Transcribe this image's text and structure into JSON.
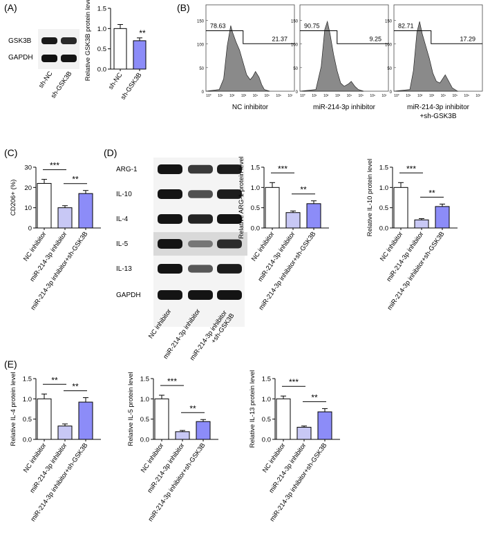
{
  "panel_labels": {
    "A": "(A)",
    "B": "(B)",
    "C": "(C)",
    "D": "(D)",
    "E": "(E)"
  },
  "colors": {
    "white": "#ffffff",
    "light": "#c8c8f5",
    "blue": "#8c8cf8",
    "band": "#1a1a1a",
    "hist": "#8a8a8a"
  },
  "blot_A": {
    "bands": [
      "GSK3B",
      "GAPDH"
    ],
    "lanes": [
      "sh-NC",
      "sh-GSK3B"
    ]
  },
  "blot_D": {
    "bands": [
      "ARG-1",
      "IL-10",
      "IL-4",
      "IL-5",
      "IL-13",
      "GAPDH"
    ],
    "lanes": [
      "NC inhibitor",
      "miR-214-3p inhibitor",
      "miR-214-3p inhibitor\n+sh-GSK3B"
    ]
  },
  "flow": [
    {
      "label": "NC inhibitor",
      "left_pct": "78.63",
      "right_pct": "21.37"
    },
    {
      "label": "miR-214-3p inhibitor",
      "left_pct": "90.75",
      "right_pct": "9.25"
    },
    {
      "label": "miR-214-3p inhibitor\n+sh-GSK3B",
      "left_pct": "82.71",
      "right_pct": "17.29"
    }
  ],
  "flow_yticks": [
    "0",
    "50",
    "100",
    "150"
  ],
  "flow_xticks": [
    "10°",
    "10¹",
    "10²",
    "10³",
    "10⁴",
    "10⁵",
    "10⁶",
    "10⁷"
  ],
  "chart_data": [
    {
      "id": "A",
      "type": "bar",
      "categories": [
        "sh-NC",
        "sh-GSK3B"
      ],
      "values": [
        1.0,
        0.7
      ],
      "errors": [
        0.1,
        0.07
      ],
      "ylabel": "Relative GSK3B protein level",
      "ylim": [
        0,
        1.5
      ],
      "yticks": [
        "0.0",
        "0.5",
        "1.0",
        "1.5"
      ],
      "sig": [
        {
          "text": "**",
          "over": 1
        }
      ]
    },
    {
      "id": "C",
      "type": "bar",
      "categories": [
        "NC inhibitor",
        "miR-214-3p inhibitor",
        "miR-214-3p inhibitor+sh-GSK3B"
      ],
      "values": [
        22,
        10,
        17
      ],
      "errors": [
        2,
        1,
        1.5
      ],
      "ylabel": "CD206+ (%)",
      "ylim": [
        0,
        30
      ],
      "yticks": [
        "0",
        "10",
        "20",
        "30"
      ],
      "sig": [
        {
          "text": "***",
          "from": 0,
          "to": 1
        },
        {
          "text": "**",
          "from": 1,
          "to": 2
        }
      ]
    },
    {
      "id": "ARG1",
      "type": "bar",
      "categories": [
        "NC inhibitor",
        "miR-214-3p inhibitor",
        "miR-214-3p inhibitor+sh-GSK3B"
      ],
      "values": [
        1.0,
        0.38,
        0.6
      ],
      "errors": [
        0.12,
        0.04,
        0.07
      ],
      "ylabel": "Relative ARG-1 protein level",
      "ylim": [
        0,
        1.5
      ],
      "yticks": [
        "0.0",
        "0.5",
        "1.0",
        "1.5"
      ],
      "sig": [
        {
          "text": "***",
          "from": 0,
          "to": 1
        },
        {
          "text": "**",
          "from": 1,
          "to": 2
        }
      ]
    },
    {
      "id": "IL10",
      "type": "bar",
      "categories": [
        "NC inhibitor",
        "miR-214-3p inhibitor",
        "miR-214-3p inhibitor+sh-GSK3B"
      ],
      "values": [
        1.0,
        0.2,
        0.53
      ],
      "errors": [
        0.12,
        0.03,
        0.06
      ],
      "ylabel": "Relative IL-10 protein level",
      "ylim": [
        0,
        1.5
      ],
      "yticks": [
        "0.0",
        "0.5",
        "1.0",
        "1.5"
      ],
      "sig": [
        {
          "text": "***",
          "from": 0,
          "to": 1
        },
        {
          "text": "**",
          "from": 1,
          "to": 2
        }
      ]
    },
    {
      "id": "IL4",
      "type": "bar",
      "categories": [
        "NC inhibitor",
        "miR-214-3p inhibitor",
        "miR-214-3p inhibitor+sh-GSK3B"
      ],
      "values": [
        1.0,
        0.33,
        0.92
      ],
      "errors": [
        0.12,
        0.05,
        0.11
      ],
      "ylabel": "Relative IL-4 protein level",
      "ylim": [
        0,
        1.5
      ],
      "yticks": [
        "0.0",
        "0.5",
        "1.0",
        "1.5"
      ],
      "sig": [
        {
          "text": "**",
          "from": 0,
          "to": 1
        },
        {
          "text": "**",
          "from": 1,
          "to": 2
        }
      ]
    },
    {
      "id": "IL5",
      "type": "bar",
      "categories": [
        "NC inhibitor",
        "miR-214-3p inhibitor",
        "miR-214-3p inhibitor+sh-GSK3B"
      ],
      "values": [
        1.0,
        0.19,
        0.44
      ],
      "errors": [
        0.09,
        0.03,
        0.05
      ],
      "ylabel": "Relative IL-5 protein level",
      "ylim": [
        0,
        1.5
      ],
      "yticks": [
        "0.0",
        "0.5",
        "1.0",
        "1.5"
      ],
      "sig": [
        {
          "text": "***",
          "from": 0,
          "to": 1
        },
        {
          "text": "**",
          "from": 1,
          "to": 2
        }
      ]
    },
    {
      "id": "IL13",
      "type": "bar",
      "categories": [
        "NC inhibitor",
        "miR-214-3p inhibitor",
        "miR-214-3p inhibitor+sh-GSK3B"
      ],
      "values": [
        1.0,
        0.3,
        0.68
      ],
      "errors": [
        0.07,
        0.03,
        0.08
      ],
      "ylabel": "Relative IL-13 protein level",
      "ylim": [
        0,
        1.5
      ],
      "yticks": [
        "0.0",
        "0.5",
        "1.0",
        "1.5"
      ],
      "sig": [
        {
          "text": "***",
          "from": 0,
          "to": 1
        },
        {
          "text": "**",
          "from": 1,
          "to": 2
        }
      ]
    }
  ]
}
